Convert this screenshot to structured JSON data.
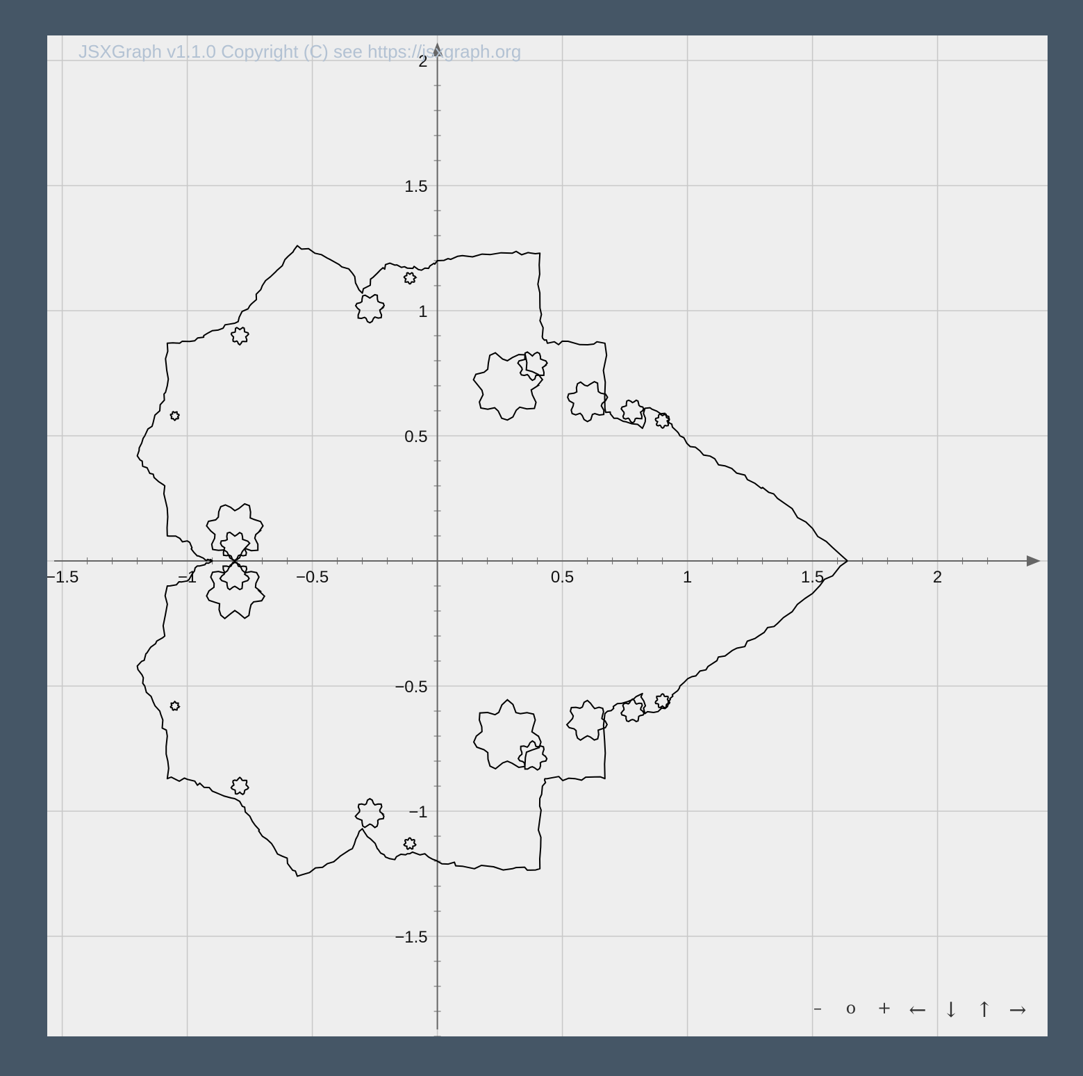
{
  "board": {
    "copyright": "JSXGraph v1.1.0 Copyright (C) see https://jsxgraph.org",
    "background": "#eeeeee",
    "page_background": "#455666",
    "grid_color": "#c8c8c8",
    "axis_color": "#666666",
    "curve_color": "#000000"
  },
  "navigation": {
    "zoom_out": "–",
    "zoom_reset": "o",
    "zoom_in": "+",
    "left": "←",
    "down": "↓",
    "up": "↑",
    "right": "→"
  },
  "axes": {
    "x_ticks": [
      "-1.5",
      "-1",
      "-0.5",
      "0.5",
      "1",
      "1.5",
      "2"
    ],
    "y_ticks": [
      "2",
      "1.5",
      "1",
      "0.5",
      "-0.5",
      "-1",
      "-1.5"
    ],
    "xlim": [
      -1.56,
      2.44
    ],
    "ylim": [
      -1.9,
      2.1
    ]
  }
}
